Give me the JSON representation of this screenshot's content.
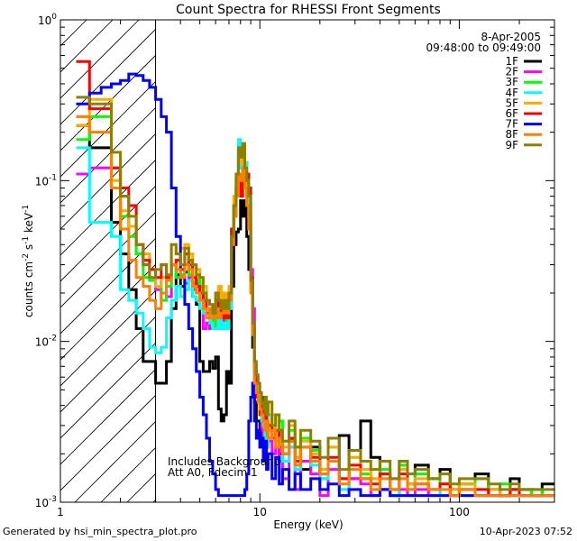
{
  "chart_data": {
    "type": "line",
    "title": "Count Spectra for RHESSI Front Segments",
    "xlabel": "Energy (keV)",
    "ylabel_parts": [
      "counts cm",
      "-2",
      " s",
      "-1",
      " keV",
      "-1"
    ],
    "x_scale": "log",
    "y_scale": "log",
    "xlim": [
      1,
      300
    ],
    "ylim": [
      0.001,
      1
    ],
    "x_ticks": [
      {
        "v": 1,
        "label": "1"
      },
      {
        "v": 10,
        "label": "10"
      },
      {
        "v": 100,
        "label": "100"
      }
    ],
    "y_ticks": [
      {
        "v": 1,
        "base": "10",
        "exp": "0"
      },
      {
        "v": 0.1,
        "base": "10",
        "exp": "-1"
      },
      {
        "v": 0.01,
        "base": "10",
        "exp": "-2"
      },
      {
        "v": 0.001,
        "base": "10",
        "exp": "-3"
      }
    ],
    "legend_placement": "top-right",
    "legend_header": [
      "8-Apr-2005",
      "09:48:00 to 09:49:00"
    ],
    "annotation_lines": [
      "Includes Background",
      "Att A0, Fdecim 1"
    ],
    "hatched_region_upper_keV": 3.0,
    "edges": [
      1.2,
      1.4,
      1.6,
      1.8,
      2.0,
      2.2,
      2.4,
      2.6,
      2.8,
      3.0,
      3.2,
      3.4,
      3.6,
      3.8,
      4.0,
      4.2,
      4.4,
      4.6,
      4.8,
      5.0,
      5.2,
      5.4,
      5.6,
      5.8,
      6.0,
      6.2,
      6.4,
      6.6,
      6.8,
      7.0,
      7.2,
      7.4,
      7.6,
      7.8,
      8.0,
      8.2,
      8.4,
      8.6,
      8.8,
      9.0,
      9.2,
      9.4,
      9.6,
      9.8,
      10.0,
      10.2,
      10.4,
      10.6,
      10.8,
      11.0,
      11.5,
      12.0,
      12.5,
      13.0,
      14.0,
      15.0,
      16.0,
      18.0,
      20.0,
      22.0,
      25.0,
      28.0,
      32.0,
      36.0,
      40.0,
      45.0,
      50.0,
      55.0,
      60.0,
      70.0,
      80.0,
      90.0,
      100.0,
      120.0,
      140.0,
      160.0,
      180.0,
      200.0,
      230.0,
      260.0,
      300.0
    ],
    "series": [
      {
        "name": "1F",
        "color": "#000000",
        "values": [
          0.22,
          0.16,
          0.16,
          0.055,
          0.035,
          0.021,
          0.012,
          0.0075,
          0.0075,
          0.0055,
          0.0055,
          0.0075,
          0.016,
          0.026,
          0.022,
          0.027,
          0.032,
          0.019,
          0.017,
          0.0075,
          0.0065,
          0.0065,
          0.0075,
          0.0068,
          0.008,
          0.0038,
          0.0032,
          0.0035,
          0.0065,
          0.0055,
          0.022,
          0.04,
          0.048,
          0.05,
          0.075,
          0.06,
          0.075,
          0.045,
          0.028,
          0.022,
          0.0092,
          0.0042,
          0.0032,
          0.0032,
          0.0022,
          0.0035,
          0.0045,
          0.0032,
          0.0022,
          0.003,
          0.0025,
          0.0028,
          0.002,
          0.0018,
          0.0024,
          0.0022,
          0.0016,
          0.0022,
          0.0014,
          0.0018,
          0.0026,
          0.0014,
          0.0032,
          0.0019,
          0.0012,
          0.0011,
          0.0018,
          0.0013,
          0.0017,
          0.0014,
          0.0016,
          0.0012,
          0.0013,
          0.0015,
          0.0012,
          0.0011,
          0.0014,
          0.0012,
          0.0011,
          0.0013
        ]
      },
      {
        "name": "2F",
        "color": "#ff00ff",
        "values": [
          0.11,
          0.12,
          0.12,
          0.12,
          0.08,
          0.052,
          0.035,
          0.03,
          0.024,
          0.021,
          0.02,
          0.019,
          0.03,
          0.025,
          0.026,
          0.023,
          0.025,
          0.021,
          0.023,
          0.02,
          0.012,
          0.013,
          0.012,
          0.016,
          0.014,
          0.012,
          0.012,
          0.014,
          0.012,
          0.016,
          0.045,
          0.06,
          0.09,
          0.12,
          0.14,
          0.17,
          0.12,
          0.09,
          0.07,
          0.028,
          0.016,
          0.0072,
          0.0055,
          0.0045,
          0.0045,
          0.0028,
          0.0022,
          0.0032,
          0.0025,
          0.0024,
          0.002,
          0.0022,
          0.0018,
          0.0014,
          0.0022,
          0.0012,
          0.0018,
          0.0015,
          0.0011,
          0.0016,
          0.0012,
          0.0014,
          0.0013,
          0.0011,
          0.0012,
          0.0014,
          0.0012,
          0.0011,
          0.0012,
          0.0011,
          0.0013,
          0.0011,
          0.0012,
          0.0011,
          0.0012,
          0.0011,
          0.0012,
          0.0011,
          0.0011,
          0.0011
        ]
      },
      {
        "name": "3F",
        "color": "#00ff00",
        "values": [
          0.18,
          0.25,
          0.25,
          0.09,
          0.06,
          0.045,
          0.035,
          0.025,
          0.024,
          0.025,
          0.018,
          0.022,
          0.03,
          0.025,
          0.026,
          0.03,
          0.026,
          0.023,
          0.024,
          0.022,
          0.018,
          0.014,
          0.016,
          0.012,
          0.015,
          0.014,
          0.017,
          0.015,
          0.013,
          0.018,
          0.045,
          0.07,
          0.09,
          0.15,
          0.13,
          0.16,
          0.12,
          0.08,
          0.06,
          0.024,
          0.012,
          0.0065,
          0.0055,
          0.0045,
          0.0042,
          0.0035,
          0.0032,
          0.0042,
          0.003,
          0.0028,
          0.0035,
          0.0022,
          0.0032,
          0.0024,
          0.0028,
          0.0018,
          0.0025,
          0.0021,
          0.0016,
          0.0022,
          0.0014,
          0.0019,
          0.0015,
          0.0014,
          0.0016,
          0.0012,
          0.0017,
          0.0013,
          0.0015,
          0.0014,
          0.0013,
          0.0012,
          0.0013,
          0.0014,
          0.0012,
          0.0013,
          0.0012,
          0.0011,
          0.0012,
          0.0011
        ]
      },
      {
        "name": "4F",
        "color": "#00ffff",
        "values": [
          0.16,
          0.055,
          0.055,
          0.045,
          0.021,
          0.018,
          0.015,
          0.012,
          0.0092,
          0.0085,
          0.0092,
          0.014,
          0.018,
          0.022,
          0.019,
          0.021,
          0.024,
          0.019,
          0.018,
          0.016,
          0.015,
          0.016,
          0.013,
          0.012,
          0.012,
          0.014,
          0.012,
          0.013,
          0.012,
          0.016,
          0.045,
          0.07,
          0.1,
          0.18,
          0.12,
          0.16,
          0.13,
          0.09,
          0.06,
          0.025,
          0.012,
          0.006,
          0.005,
          0.0045,
          0.004,
          0.0032,
          0.003,
          0.0025,
          0.0022,
          0.0035,
          0.0028,
          0.0022,
          0.0028,
          0.0018,
          0.0022,
          0.0016,
          0.0022,
          0.0017,
          0.0014,
          0.0018,
          0.0012,
          0.0016,
          0.0014,
          0.0012,
          0.0015,
          0.0011,
          0.0014,
          0.0012,
          0.0013,
          0.0012,
          0.0011,
          0.0012,
          0.0011,
          0.0012,
          0.0011,
          0.0011,
          0.0012,
          0.0011,
          0.0011,
          0.0011
        ]
      },
      {
        "name": "5F",
        "color": "#ffaa00",
        "values": [
          0.22,
          0.32,
          0.32,
          0.1,
          0.065,
          0.052,
          0.04,
          0.035,
          0.028,
          0.022,
          0.025,
          0.024,
          0.04,
          0.035,
          0.038,
          0.04,
          0.035,
          0.03,
          0.028,
          0.025,
          0.022,
          0.016,
          0.016,
          0.014,
          0.018,
          0.022,
          0.018,
          0.02,
          0.018,
          0.022,
          0.05,
          0.08,
          0.1,
          0.13,
          0.15,
          0.12,
          0.1,
          0.07,
          0.05,
          0.02,
          0.012,
          0.007,
          0.006,
          0.005,
          0.0045,
          0.004,
          0.0035,
          0.003,
          0.0032,
          0.0028,
          0.0035,
          0.0024,
          0.0028,
          0.0022,
          0.003,
          0.0019,
          0.0024,
          0.002,
          0.0016,
          0.0022,
          0.0014,
          0.0019,
          0.0016,
          0.0014,
          0.0015,
          0.0012,
          0.0016,
          0.0013,
          0.0014,
          0.0012,
          0.0013,
          0.0012,
          0.0013,
          0.0012,
          0.0012,
          0.0011,
          0.0012,
          0.0011,
          0.0011,
          0.0011
        ]
      },
      {
        "name": "6F",
        "color": "#ff0000",
        "values": [
          0.55,
          0.28,
          0.28,
          0.12,
          0.09,
          0.07,
          0.04,
          0.032,
          0.028,
          0.025,
          0.03,
          0.025,
          0.03,
          0.032,
          0.028,
          0.035,
          0.03,
          0.025,
          0.022,
          0.02,
          0.018,
          0.015,
          0.016,
          0.014,
          0.018,
          0.016,
          0.014,
          0.015,
          0.014,
          0.02,
          0.05,
          0.07,
          0.09,
          0.11,
          0.08,
          0.12,
          0.1,
          0.11,
          0.09,
          0.025,
          0.012,
          0.0065,
          0.0045,
          0.0042,
          0.0035,
          0.004,
          0.0032,
          0.0035,
          0.0028,
          0.003,
          0.0025,
          0.0028,
          0.0022,
          0.002,
          0.0025,
          0.0018,
          0.0022,
          0.0019,
          0.0015,
          0.0019,
          0.0014,
          0.0017,
          0.0014,
          0.0013,
          0.0015,
          0.0012,
          0.0015,
          0.0012,
          0.0013,
          0.0012,
          0.0013,
          0.0011,
          0.0012,
          0.0012,
          0.0011,
          0.0011,
          0.0012,
          0.0011,
          0.0011,
          0.0011
        ]
      },
      {
        "name": "7F",
        "color": "#0000ff",
        "values": [
          0.3,
          0.35,
          0.38,
          0.4,
          0.42,
          0.46,
          0.45,
          0.42,
          0.38,
          0.32,
          0.25,
          0.2,
          0.09,
          0.045,
          0.025,
          0.017,
          0.012,
          0.009,
          0.0065,
          0.0045,
          0.0035,
          0.0025,
          0.0018,
          0.0015,
          0.0012,
          0.0011,
          0.0011,
          0.0011,
          0.0011,
          0.0011,
          0.0011,
          0.0011,
          0.0011,
          0.0011,
          0.0011,
          0.0011,
          0.0012,
          0.0015,
          0.0032,
          0.0045,
          0.0055,
          0.0032,
          0.0025,
          0.0028,
          0.0022,
          0.0025,
          0.0018,
          0.0024,
          0.0016,
          0.002,
          0.0014,
          0.0019,
          0.0013,
          0.0016,
          0.0012,
          0.0015,
          0.0012,
          0.0014,
          0.0012,
          0.0013,
          0.0011,
          0.0012,
          0.0011,
          0.0011,
          0.0012,
          0.0011,
          0.0011,
          0.0011,
          0.0011,
          0.0011,
          0.0011,
          0.0011,
          0.0011,
          0.0011,
          0.0011,
          0.0011,
          0.0011,
          0.0011,
          0.0011,
          0.0011
        ]
      },
      {
        "name": "8F",
        "color": "#ff7f00",
        "values": [
          0.25,
          0.2,
          0.2,
          0.09,
          0.05,
          0.032,
          0.025,
          0.022,
          0.018,
          0.016,
          0.02,
          0.024,
          0.03,
          0.028,
          0.025,
          0.03,
          0.028,
          0.022,
          0.02,
          0.018,
          0.016,
          0.014,
          0.016,
          0.014,
          0.016,
          0.014,
          0.015,
          0.016,
          0.015,
          0.018,
          0.04,
          0.06,
          0.08,
          0.11,
          0.1,
          0.12,
          0.09,
          0.07,
          0.05,
          0.02,
          0.011,
          0.0055,
          0.0048,
          0.0042,
          0.0038,
          0.0035,
          0.0032,
          0.0028,
          0.0032,
          0.0025,
          0.0028,
          0.0022,
          0.0025,
          0.002,
          0.0024,
          0.0017,
          0.0022,
          0.0018,
          0.0015,
          0.0018,
          0.0013,
          0.0016,
          0.0014,
          0.0012,
          0.0014,
          0.0012,
          0.0014,
          0.0012,
          0.0013,
          0.0012,
          0.0012,
          0.0011,
          0.0012,
          0.0011,
          0.0011,
          0.0011,
          0.0011,
          0.0011,
          0.0011,
          0.0011
        ]
      },
      {
        "name": "9F",
        "color": "#8b8000",
        "values": [
          0.33,
          0.3,
          0.3,
          0.15,
          0.08,
          0.06,
          0.04,
          0.03,
          0.025,
          0.028,
          0.03,
          0.026,
          0.04,
          0.035,
          0.03,
          0.038,
          0.032,
          0.03,
          0.026,
          0.025,
          0.02,
          0.018,
          0.017,
          0.015,
          0.02,
          0.018,
          0.016,
          0.018,
          0.016,
          0.02,
          0.045,
          0.07,
          0.11,
          0.16,
          0.14,
          0.17,
          0.12,
          0.1,
          0.08,
          0.024,
          0.013,
          0.0075,
          0.0062,
          0.0055,
          0.0048,
          0.0042,
          0.0038,
          0.0045,
          0.0035,
          0.0042,
          0.003,
          0.0035,
          0.0028,
          0.0024,
          0.0032,
          0.0022,
          0.0028,
          0.0024,
          0.0019,
          0.0025,
          0.0016,
          0.0021,
          0.0018,
          0.0016,
          0.0018,
          0.0014,
          0.0018,
          0.0015,
          0.0016,
          0.0014,
          0.0015,
          0.0013,
          0.0014,
          0.0014,
          0.0013,
          0.0012,
          0.0013,
          0.0012,
          0.0012,
          0.0012
        ]
      }
    ]
  },
  "footer": {
    "left": "Generated by hsi_min_spectra_plot.pro",
    "right": "10-Apr-2023 07:52"
  }
}
